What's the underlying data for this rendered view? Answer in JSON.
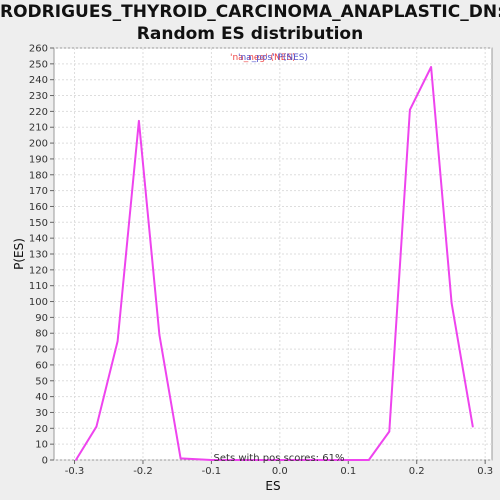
{
  "chart_data": {
    "type": "line",
    "title": "RODRIGUES_THYROID_CARCINOMA_ANAPLASTIC_DN:",
    "subtitle": "Random ES distribution",
    "xlabel": "ES",
    "ylabel": "P(ES)",
    "xlim": [
      -0.33,
      0.31
    ],
    "ylim": [
      0,
      260
    ],
    "xticks": [
      "-0.3",
      "-0.2",
      "-0.1",
      "0.0",
      "0.1",
      "0.2",
      "0.3"
    ],
    "xtick_values": [
      -0.3,
      -0.2,
      -0.1,
      0.0,
      0.1,
      0.2,
      0.3
    ],
    "yticks": [
      0,
      10,
      20,
      30,
      40,
      50,
      60,
      70,
      80,
      90,
      100,
      110,
      120,
      130,
      140,
      150,
      160,
      170,
      180,
      190,
      200,
      210,
      220,
      230,
      240,
      250,
      260
    ],
    "grid": true,
    "legend": {
      "placement": "top-center",
      "entries": [
        {
          "text": "'na_neg' (NES)",
          "color": "#ee4444"
        },
        {
          "text": "'na_pos' P(NES)",
          "color": "#5555cc"
        }
      ]
    },
    "annotation": "Sets with pos scores: 61%",
    "series": [
      {
        "color": "#ee44ee",
        "x": [
          -0.298,
          -0.268,
          -0.237,
          -0.206,
          -0.176,
          -0.145,
          -0.1,
          0.0,
          0.1,
          0.13,
          0.16,
          0.19,
          0.221,
          0.251,
          0.282
        ],
        "y": [
          0,
          21,
          75,
          214,
          79,
          1,
          0,
          0,
          0,
          0,
          18,
          221,
          248,
          99,
          21
        ]
      }
    ]
  }
}
